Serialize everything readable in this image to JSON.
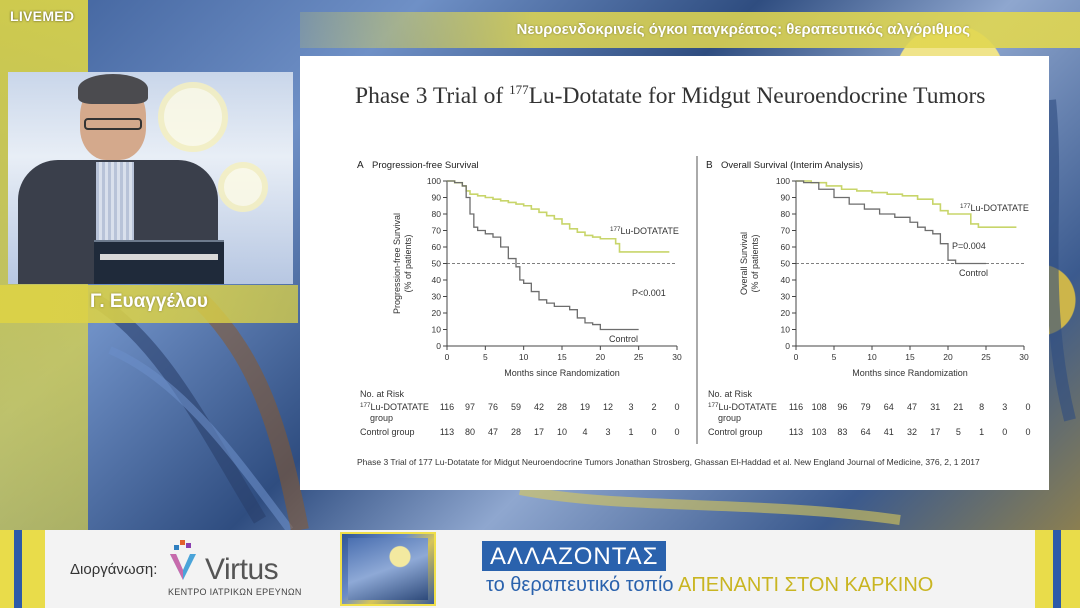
{
  "broadcast": {
    "brand": "LIVEMED",
    "session_title": "Νευροενδοκρινείς όγκοι παγκρέατος: θεραπευτικός αλγόριθμος",
    "speaker_name": "Γ. Ευαγγέλου"
  },
  "slide": {
    "title_pre": "Phase 3 Trial of ",
    "title_sup": "177",
    "title_post": "Lu-Dotatate for Midgut Neuroendocrine Tumors",
    "citation": "Phase 3 Trial of 177 Lu-Dotatate for Midgut Neuroendocrine Tumors Jonathan Strosberg, Ghassan El-Haddad et al. New England Journal of Medicine, 376, 2, 1 2017"
  },
  "chart_data": [
    {
      "type": "line",
      "panel_letter": "A",
      "title": "Progression-free Survival",
      "xlabel": "Months since Randomization",
      "ylabel_line1": "Progression-free Survival",
      "ylabel_line2": "(% of patients)",
      "xlim": [
        0,
        30
      ],
      "ylim": [
        0,
        100
      ],
      "xticks": [
        0,
        5,
        10,
        15,
        20,
        25,
        30
      ],
      "yticks": [
        0,
        10,
        20,
        30,
        40,
        50,
        60,
        70,
        80,
        90,
        100
      ],
      "reference_line_y": 50,
      "colors": {
        "lu": "#c8d56a",
        "control": "#6d6d6d"
      },
      "series": [
        {
          "name_sup": "177",
          "name": "Lu-DOTATATE",
          "points": [
            [
              0,
              100
            ],
            [
              1,
              99
            ],
            [
              2,
              97
            ],
            [
              2.5,
              94
            ],
            [
              3,
              92
            ],
            [
              4,
              91
            ],
            [
              5,
              90
            ],
            [
              6,
              89
            ],
            [
              7,
              88
            ],
            [
              8,
              87
            ],
            [
              9,
              86
            ],
            [
              10,
              85
            ],
            [
              11,
              83
            ],
            [
              12,
              81
            ],
            [
              13,
              79
            ],
            [
              14,
              77
            ],
            [
              15,
              74
            ],
            [
              16,
              71
            ],
            [
              17,
              69
            ],
            [
              18,
              67
            ],
            [
              19,
              66
            ],
            [
              20,
              65
            ],
            [
              21,
              65
            ],
            [
              22,
              62
            ],
            [
              22.5,
              57
            ],
            [
              24,
              57
            ],
            [
              25,
              57
            ],
            [
              29,
              57
            ]
          ]
        },
        {
          "name": "Control",
          "points": [
            [
              0,
              100
            ],
            [
              1,
              99
            ],
            [
              2,
              97
            ],
            [
              2.5,
              90
            ],
            [
              3,
              80
            ],
            [
              3.5,
              72
            ],
            [
              4,
              70
            ],
            [
              5,
              68
            ],
            [
              6,
              66
            ],
            [
              7,
              60
            ],
            [
              8,
              53
            ],
            [
              9,
              48
            ],
            [
              9.5,
              40
            ],
            [
              10,
              38
            ],
            [
              11,
              33
            ],
            [
              12,
              28
            ],
            [
              13,
              26
            ],
            [
              14,
              24
            ],
            [
              15,
              24
            ],
            [
              16,
              22
            ],
            [
              17,
              17
            ],
            [
              18,
              14
            ],
            [
              19,
              13
            ],
            [
              20,
              10
            ],
            [
              22,
              10
            ],
            [
              25,
              10
            ]
          ]
        }
      ],
      "annotations": {
        "p_value": "P<0.001",
        "lu_label_sup": "177",
        "lu_label": "Lu-DOTATATE",
        "control_label": "Control"
      },
      "at_risk": {
        "header": "No. at Risk",
        "rows": [
          {
            "label_sup": "177",
            "label": "Lu-DOTATATE",
            "label_line2": "group",
            "values": [
              116,
              97,
              76,
              59,
              42,
              28,
              19,
              12,
              3,
              2,
              0
            ]
          },
          {
            "label": "Control group",
            "values": [
              113,
              80,
              47,
              28,
              17,
              10,
              4,
              3,
              1,
              0,
              0
            ]
          }
        ]
      }
    },
    {
      "type": "line",
      "panel_letter": "B",
      "title": "Overall Survival (Interim Analysis)",
      "xlabel": "Months since Randomization",
      "ylabel_line1": "Overall Survival",
      "ylabel_line2": "(% of patients)",
      "xlim": [
        0,
        30
      ],
      "ylim": [
        0,
        100
      ],
      "xticks": [
        0,
        5,
        10,
        15,
        20,
        25,
        30
      ],
      "yticks": [
        0,
        10,
        20,
        30,
        40,
        50,
        60,
        70,
        80,
        90,
        100
      ],
      "reference_line_y": 50,
      "colors": {
        "lu": "#c8d56a",
        "control": "#6d6d6d"
      },
      "series": [
        {
          "name_sup": "177",
          "name": "Lu-DOTATATE",
          "points": [
            [
              0,
              100
            ],
            [
              2,
              99
            ],
            [
              4,
              97
            ],
            [
              6,
              95
            ],
            [
              8,
              94
            ],
            [
              10,
              93
            ],
            [
              12,
              92
            ],
            [
              14,
              91
            ],
            [
              16,
              89
            ],
            [
              18,
              86
            ],
            [
              19,
              82
            ],
            [
              20,
              80
            ],
            [
              22,
              80
            ],
            [
              23,
              74
            ],
            [
              24,
              72
            ],
            [
              25,
              72
            ],
            [
              29,
              72
            ]
          ]
        },
        {
          "name": "Control",
          "points": [
            [
              0,
              100
            ],
            [
              1,
              99
            ],
            [
              3,
              95
            ],
            [
              5,
              90
            ],
            [
              7,
              86
            ],
            [
              9,
              83
            ],
            [
              11,
              80
            ],
            [
              13,
              78
            ],
            [
              15,
              75
            ],
            [
              16,
              72
            ],
            [
              17,
              70
            ],
            [
              18,
              68
            ],
            [
              19,
              62
            ],
            [
              20,
              52
            ],
            [
              21,
              50
            ],
            [
              25,
              50
            ]
          ]
        }
      ],
      "annotations": {
        "p_value": "P=0.004",
        "lu_label_sup": "177",
        "lu_label": "Lu-DOTATATE",
        "control_label": "Control"
      },
      "at_risk": {
        "header": "No. at Risk",
        "rows": [
          {
            "label_sup": "177",
            "label": "Lu-DOTATATE",
            "label_line2": "group",
            "values": [
              116,
              108,
              96,
              79,
              64,
              47,
              31,
              21,
              8,
              3,
              0
            ]
          },
          {
            "label": "Control group",
            "values": [
              113,
              103,
              83,
              64,
              41,
              32,
              17,
              5,
              1,
              0,
              0
            ]
          }
        ]
      }
    }
  ],
  "footer": {
    "org_label": "Διοργάνωση:",
    "org_name": "Virtus",
    "org_sub": "ΚΕΝΤΡΟ ΙΑΤΡΙΚΩΝ ΕΡΕΥΝΩΝ",
    "tagline_box": "ΑΛΛΑΖΟΝΤΑΣ",
    "tagline_plain": "το θεραπευτικό τοπίο ",
    "tagline_highlight": "ΑΠΕΝΑΝΤΙ ΣΤΟΝ ΚΑΡΚΙΝΟ"
  }
}
